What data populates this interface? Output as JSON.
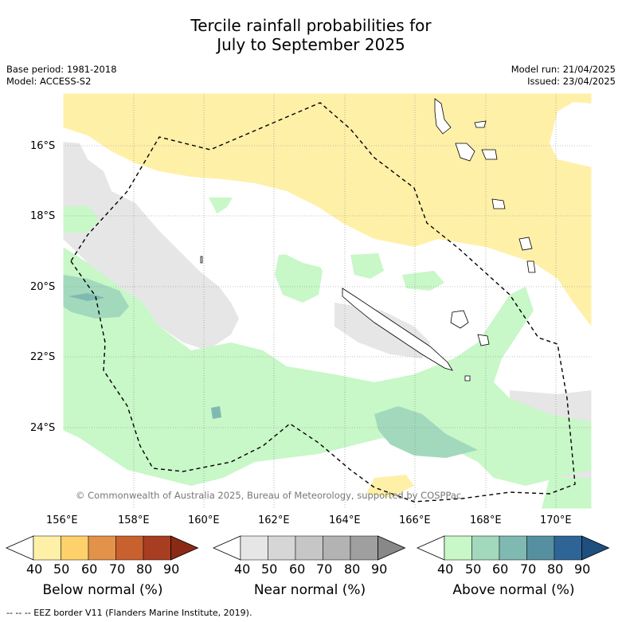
{
  "title_line1": "Tercile rainfall probabilities for",
  "title_line2": "July to September 2025",
  "base_period": "Base period: 1981-2018",
  "model": "Model: ACCESS-S2",
  "model_run": "Model run: 21/04/2025",
  "issued": "Issued: 23/04/2025",
  "lat_labels": [
    "16°S",
    "18°S",
    "20°S",
    "22°S",
    "24°S"
  ],
  "lon_labels": [
    "156°E",
    "158°E",
    "160°E",
    "162°E",
    "164°E",
    "166°E",
    "168°E",
    "170°E"
  ],
  "copyright": "© Commonwealth of Australia 2025, Bureau of Meteorology, supported by COSPPac",
  "colorbars": [
    {
      "label": "Below normal (%)",
      "ticks": [
        "40",
        "50",
        "60",
        "70",
        "80",
        "90"
      ],
      "colors": [
        "#ffffff",
        "#fff0a8",
        "#fed16a",
        "#e3924a",
        "#c9612f",
        "#a73e21",
        "#8a2a14"
      ]
    },
    {
      "label": "Near normal (%)",
      "ticks": [
        "40",
        "50",
        "60",
        "70",
        "80",
        "90"
      ],
      "colors": [
        "#ffffff",
        "#e6e6e6",
        "#d6d6d6",
        "#c6c6c6",
        "#b3b3b3",
        "#9f9f9f",
        "#888888"
      ]
    },
    {
      "label": "Above normal (%)",
      "ticks": [
        "40",
        "50",
        "60",
        "70",
        "80",
        "90"
      ],
      "colors": [
        "#ffffff",
        "#c8f7c8",
        "#a2d9bc",
        "#80b8b2",
        "#5690a0",
        "#2f6596",
        "#1e4f7e"
      ]
    }
  ],
  "footer": "--  --  -- EEZ border V11 (Flanders Marine Institute, 2019)."
}
